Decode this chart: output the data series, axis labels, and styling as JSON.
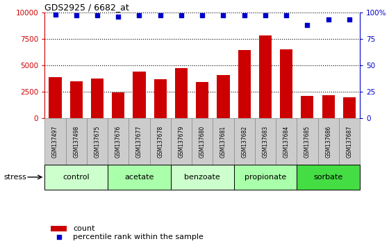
{
  "title": "GDS2925 / 6682_at",
  "samples": [
    "GSM137497",
    "GSM137498",
    "GSM137675",
    "GSM137676",
    "GSM137677",
    "GSM137678",
    "GSM137679",
    "GSM137680",
    "GSM137681",
    "GSM137682",
    "GSM137683",
    "GSM137684",
    "GSM137685",
    "GSM137686",
    "GSM137687"
  ],
  "counts": [
    3900,
    3500,
    3750,
    2400,
    4400,
    3700,
    4700,
    3400,
    4100,
    6400,
    7800,
    6500,
    2100,
    2150,
    1950
  ],
  "percentiles": [
    98,
    97,
    97,
    96,
    97,
    97,
    97,
    97,
    97,
    97,
    97,
    97,
    88,
    93,
    93
  ],
  "groups": [
    {
      "label": "control",
      "start": 0,
      "end": 3,
      "color": "#ccffcc"
    },
    {
      "label": "acetate",
      "start": 3,
      "end": 6,
      "color": "#aaffaa"
    },
    {
      "label": "benzoate",
      "start": 6,
      "end": 9,
      "color": "#ccffcc"
    },
    {
      "label": "propionate",
      "start": 9,
      "end": 12,
      "color": "#aaffaa"
    },
    {
      "label": "sorbate",
      "start": 12,
      "end": 15,
      "color": "#44dd44"
    }
  ],
  "bar_color": "#cc0000",
  "dot_color": "#0000cc",
  "left_axis_color": "#cc0000",
  "right_axis_color": "#0000cc",
  "ylim_left": [
    0,
    10000
  ],
  "ylim_right": [
    0,
    100
  ],
  "yticks_left": [
    0,
    2500,
    5000,
    7500,
    10000
  ],
  "ytick_labels_left": [
    "0",
    "2500",
    "5000",
    "7500",
    "10000"
  ],
  "yticks_right": [
    0,
    25,
    50,
    75,
    100
  ],
  "ytick_labels_right": [
    "0",
    "25",
    "50",
    "75",
    "100%"
  ],
  "grid_color": "#000000",
  "background_color": "#ffffff",
  "xticklabel_bg": "#cccccc",
  "stress_label": "stress",
  "legend_count_label": "count",
  "legend_percentile_label": "percentile rank within the sample"
}
